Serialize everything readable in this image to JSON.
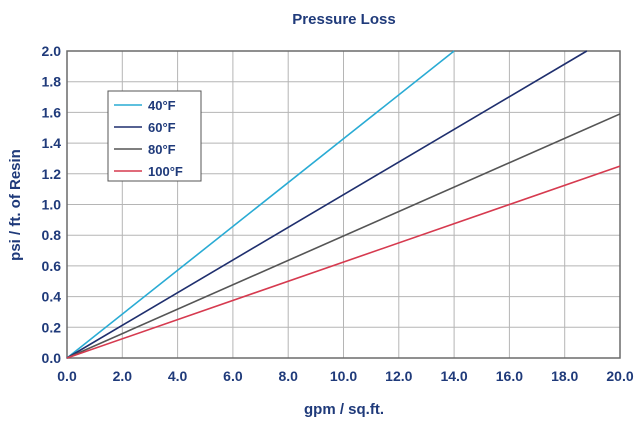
{
  "chart_data": {
    "type": "line",
    "title": "Pressure Loss",
    "xlabel": "gpm / sq.ft.",
    "ylabel": "psi / ft. of Resin",
    "xlim": [
      0,
      20
    ],
    "ylim": [
      0,
      2
    ],
    "x_ticks": [
      "0.0",
      "2.0",
      "4.0",
      "6.0",
      "8.0",
      "10.0",
      "12.0",
      "14.0",
      "16.0",
      "18.0",
      "20.0"
    ],
    "y_ticks": [
      "0.0",
      "0.2",
      "0.4",
      "0.6",
      "0.8",
      "1.0",
      "1.2",
      "1.4",
      "1.6",
      "1.8",
      "2.0"
    ],
    "grid": true,
    "legend_position": "top-left",
    "series": [
      {
        "name": "40°F",
        "color": "#29abd4",
        "x": [
          0,
          14.0
        ],
        "y": [
          0,
          2.0
        ]
      },
      {
        "name": "60°F",
        "color": "#1f2f6e",
        "x": [
          0,
          18.8
        ],
        "y": [
          0,
          2.0
        ]
      },
      {
        "name": "80°F",
        "color": "#555555",
        "x": [
          0,
          20.0
        ],
        "y": [
          0,
          1.59
        ]
      },
      {
        "name": "100°F",
        "color": "#d63a4f",
        "x": [
          0,
          20.0
        ],
        "y": [
          0,
          1.25
        ]
      }
    ]
  }
}
